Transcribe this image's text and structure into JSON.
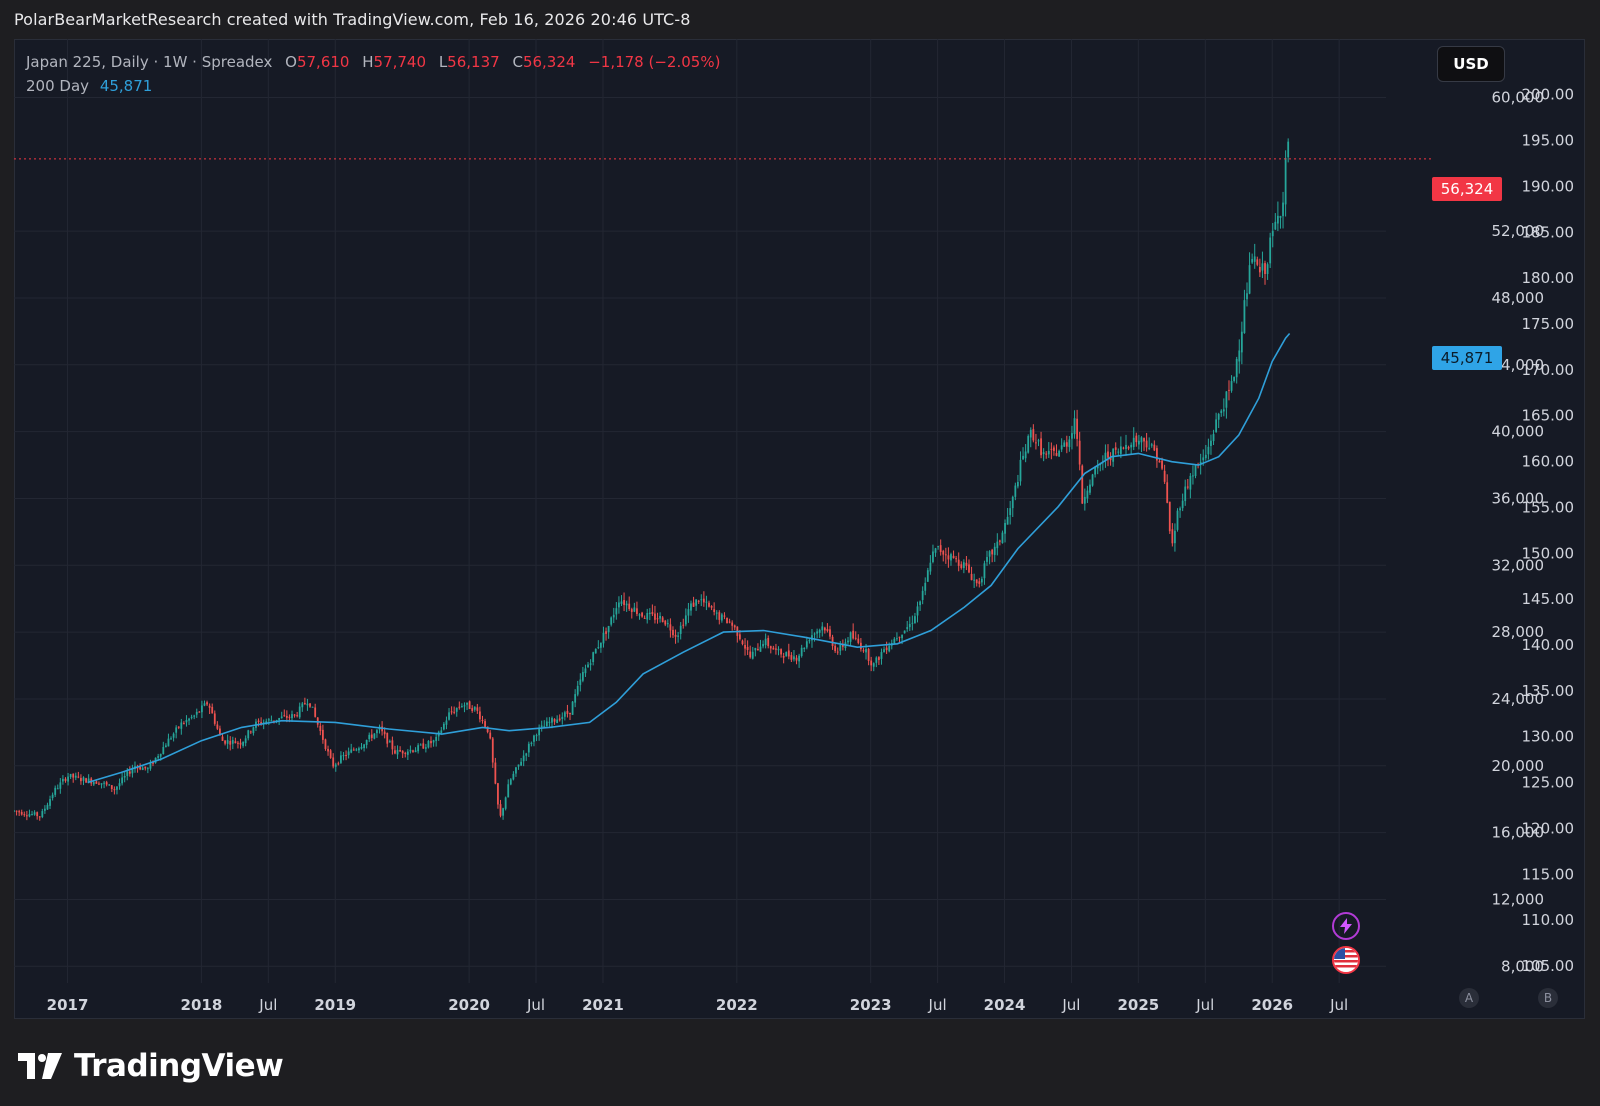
{
  "header": {
    "text": "PolarBearMarketResearch created with TradingView.com, Feb 16, 2026 20:46 UTC-8"
  },
  "legend": {
    "symbol": "Japan 225, Daily · 1W · Spreadex",
    "open_label": "O",
    "open": "57,610",
    "high_label": "H",
    "high": "57,740",
    "low_label": "L",
    "low": "56,137",
    "close_label": "C",
    "close": "56,324",
    "change": "−1,178 (−2.05%)",
    "ma_label": "200 Day",
    "ma_value": "45,871"
  },
  "currency_button": "USD",
  "price_tags": {
    "last": "56,324",
    "ma": "45,871"
  },
  "scale_buttons": {
    "a": "A",
    "b": "B"
  },
  "brand": {
    "name": "TradingView"
  },
  "icons": {
    "alert": "lightning-icon",
    "flag": "us-flag-icon",
    "logo": "tradingview-logo-icon"
  },
  "colors": {
    "up": "#26a69a",
    "down": "#ef5350",
    "ma": "#2f9fd9",
    "last_line": "#f23645",
    "background": "#161a25",
    "grid": "#232733"
  },
  "chart_data": {
    "type": "candlestick",
    "symbol": "Japan 225",
    "interval": "1W",
    "x_range": [
      2016.6,
      2026.85
    ],
    "ylim": [
      7000,
      63500
    ],
    "left_axis_ticks": [
      "200.00",
      "195.00",
      "190.00",
      "185.00",
      "180.00",
      "175.00",
      "170.00",
      "165.00",
      "160.00",
      "155.00",
      "150.00",
      "145.00",
      "140.00",
      "135.00",
      "130.00",
      "125.00",
      "120.00",
      "115.00",
      "110.00",
      "105.00"
    ],
    "left_axis_values": [
      200,
      195,
      190,
      185,
      180,
      175,
      170,
      165,
      160,
      155,
      150,
      145,
      140,
      135,
      130,
      125,
      120,
      115,
      110,
      105
    ],
    "right_axis_ticks": [
      "60,000",
      "52,000",
      "48,000",
      "44,000",
      "40,000",
      "36,000",
      "32,000",
      "28,000",
      "24,000",
      "20,000",
      "16,000",
      "12,000",
      "8,000"
    ],
    "right_axis_values": [
      60000,
      52000,
      48000,
      44000,
      40000,
      36000,
      32000,
      28000,
      24000,
      20000,
      16000,
      12000,
      8000
    ],
    "x_ticks": [
      {
        "label": "2017",
        "t": 2017.0,
        "bold": true
      },
      {
        "label": "2018",
        "t": 2018.0,
        "bold": true
      },
      {
        "label": "Jul",
        "t": 2018.5,
        "bold": false
      },
      {
        "label": "2019",
        "t": 2019.0,
        "bold": true
      },
      {
        "label": "2020",
        "t": 2020.0,
        "bold": true
      },
      {
        "label": "Jul",
        "t": 2020.5,
        "bold": false
      },
      {
        "label": "2021",
        "t": 2021.0,
        "bold": true
      },
      {
        "label": "2022",
        "t": 2022.0,
        "bold": true
      },
      {
        "label": "2023",
        "t": 2023.0,
        "bold": true
      },
      {
        "label": "Jul",
        "t": 2023.5,
        "bold": false
      },
      {
        "label": "2024",
        "t": 2024.0,
        "bold": true
      },
      {
        "label": "Jul",
        "t": 2024.5,
        "bold": false
      },
      {
        "label": "2025",
        "t": 2025.0,
        "bold": true
      },
      {
        "label": "Jul",
        "t": 2025.5,
        "bold": false
      },
      {
        "label": "2026",
        "t": 2026.0,
        "bold": true
      },
      {
        "label": "Jul",
        "t": 2026.5,
        "bold": false
      }
    ],
    "price_path": [
      [
        2016.6,
        17300
      ],
      [
        2016.8,
        17000
      ],
      [
        2016.9,
        18500
      ],
      [
        2017.0,
        19400
      ],
      [
        2017.1,
        19200
      ],
      [
        2017.25,
        19000
      ],
      [
        2017.35,
        18600
      ],
      [
        2017.5,
        20000
      ],
      [
        2017.6,
        19800
      ],
      [
        2017.75,
        21500
      ],
      [
        2017.85,
        22500
      ],
      [
        2017.95,
        23000
      ],
      [
        2018.05,
        23800
      ],
      [
        2018.15,
        21500
      ],
      [
        2018.3,
        21400
      ],
      [
        2018.4,
        22500
      ],
      [
        2018.55,
        22800
      ],
      [
        2018.7,
        23000
      ],
      [
        2018.8,
        24000
      ],
      [
        2018.9,
        21800
      ],
      [
        2018.98,
        20000
      ],
      [
        2019.05,
        20500
      ],
      [
        2019.2,
        21300
      ],
      [
        2019.33,
        22200
      ],
      [
        2019.45,
        20800
      ],
      [
        2019.6,
        21000
      ],
      [
        2019.75,
        21500
      ],
      [
        2019.85,
        23100
      ],
      [
        2019.95,
        23700
      ],
      [
        2020.05,
        23400
      ],
      [
        2020.15,
        22000
      ],
      [
        2020.2,
        18500
      ],
      [
        2020.23,
        16800
      ],
      [
        2020.3,
        19000
      ],
      [
        2020.4,
        20500
      ],
      [
        2020.5,
        22000
      ],
      [
        2020.6,
        22600
      ],
      [
        2020.75,
        23200
      ],
      [
        2020.85,
        25500
      ],
      [
        2020.95,
        27000
      ],
      [
        2021.05,
        28500
      ],
      [
        2021.12,
        30000
      ],
      [
        2021.3,
        29000
      ],
      [
        2021.45,
        28800
      ],
      [
        2021.55,
        27800
      ],
      [
        2021.65,
        29500
      ],
      [
        2021.72,
        30000
      ],
      [
        2021.85,
        29000
      ],
      [
        2021.95,
        28600
      ],
      [
        2022.02,
        27800
      ],
      [
        2022.1,
        26500
      ],
      [
        2022.2,
        27500
      ],
      [
        2022.3,
        26800
      ],
      [
        2022.45,
        26500
      ],
      [
        2022.55,
        27800
      ],
      [
        2022.65,
        28400
      ],
      [
        2022.75,
        26800
      ],
      [
        2022.85,
        27800
      ],
      [
        2022.95,
        27000
      ],
      [
        2023.02,
        26000
      ],
      [
        2023.1,
        27000
      ],
      [
        2023.2,
        27800
      ],
      [
        2023.3,
        28500
      ],
      [
        2023.4,
        30500
      ],
      [
        2023.45,
        32500
      ],
      [
        2023.5,
        33000
      ],
      [
        2023.6,
        32500
      ],
      [
        2023.7,
        32000
      ],
      [
        2023.8,
        30800
      ],
      [
        2023.88,
        32500
      ],
      [
        2023.95,
        33200
      ],
      [
        2024.05,
        35500
      ],
      [
        2024.12,
        38000
      ],
      [
        2024.2,
        40000
      ],
      [
        2024.3,
        38500
      ],
      [
        2024.4,
        38800
      ],
      [
        2024.48,
        39500
      ],
      [
        2024.53,
        41000
      ],
      [
        2024.58,
        35800
      ],
      [
        2024.62,
        36800
      ],
      [
        2024.75,
        38500
      ],
      [
        2024.85,
        38800
      ],
      [
        2024.95,
        39500
      ],
      [
        2025.05,
        39500
      ],
      [
        2025.15,
        38500
      ],
      [
        2025.2,
        36800
      ],
      [
        2025.25,
        33000
      ],
      [
        2025.3,
        35500
      ],
      [
        2025.4,
        37500
      ],
      [
        2025.5,
        38500
      ],
      [
        2025.6,
        41000
      ],
      [
        2025.7,
        42800
      ],
      [
        2025.75,
        45000
      ],
      [
        2025.8,
        48000
      ],
      [
        2025.85,
        50500
      ],
      [
        2025.9,
        49500
      ],
      [
        2025.95,
        49800
      ],
      [
        2026.0,
        51800
      ],
      [
        2026.05,
        53000
      ],
      [
        2026.08,
        54000
      ],
      [
        2026.11,
        57500
      ],
      [
        2026.13,
        56324
      ]
    ],
    "ma_path": [
      [
        2017.15,
        19000
      ],
      [
        2017.4,
        19600
      ],
      [
        2017.7,
        20400
      ],
      [
        2018.0,
        21500
      ],
      [
        2018.3,
        22300
      ],
      [
        2018.6,
        22700
      ],
      [
        2019.0,
        22600
      ],
      [
        2019.4,
        22200
      ],
      [
        2019.8,
        21900
      ],
      [
        2020.1,
        22300
      ],
      [
        2020.3,
        22100
      ],
      [
        2020.6,
        22300
      ],
      [
        2020.9,
        22600
      ],
      [
        2021.1,
        23800
      ],
      [
        2021.3,
        25500
      ],
      [
        2021.6,
        26800
      ],
      [
        2021.9,
        28000
      ],
      [
        2022.2,
        28100
      ],
      [
        2022.5,
        27700
      ],
      [
        2022.9,
        27100
      ],
      [
        2023.2,
        27300
      ],
      [
        2023.45,
        28100
      ],
      [
        2023.7,
        29500
      ],
      [
        2023.9,
        30800
      ],
      [
        2024.1,
        33000
      ],
      [
        2024.4,
        35500
      ],
      [
        2024.6,
        37500
      ],
      [
        2024.8,
        38500
      ],
      [
        2025.0,
        38700
      ],
      [
        2025.25,
        38200
      ],
      [
        2025.45,
        38000
      ],
      [
        2025.6,
        38500
      ],
      [
        2025.75,
        39800
      ],
      [
        2025.9,
        42000
      ],
      [
        2026.0,
        44200
      ],
      [
        2026.1,
        45600
      ],
      [
        2026.13,
        45871
      ]
    ],
    "last_price": 56324,
    "ma_name": "200 Day",
    "ma_last": 45871,
    "grid": true,
    "legend_position": "top-left"
  }
}
